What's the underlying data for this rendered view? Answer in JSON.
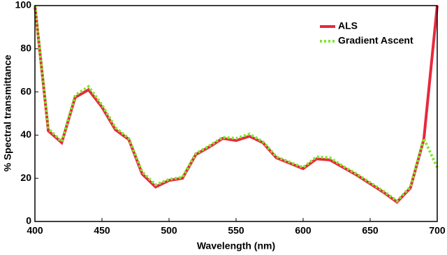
{
  "chart_data": {
    "type": "line",
    "xlabel": "Wavelength (nm)",
    "ylabel": "% Spectral transmittance",
    "x": [
      400,
      410,
      420,
      430,
      440,
      450,
      460,
      470,
      480,
      490,
      500,
      510,
      520,
      530,
      540,
      550,
      560,
      570,
      580,
      590,
      600,
      610,
      620,
      630,
      640,
      650,
      660,
      670,
      680,
      690,
      700
    ],
    "series": [
      {
        "name": "ALS",
        "color": "#e8283c",
        "style": "solid",
        "values": [
          100,
          42,
          36.5,
          57.5,
          61,
          53,
          42.5,
          38,
          22,
          16,
          19,
          20,
          31,
          34.5,
          38.5,
          37.5,
          39.5,
          36.5,
          29.5,
          27,
          24.5,
          29,
          28.5,
          25,
          21.5,
          17.5,
          13.5,
          9,
          15.5,
          38,
          100
        ]
      },
      {
        "name": "Gradient Ascent",
        "color": "#7ee830",
        "style": "dotted",
        "values": [
          100,
          43,
          37,
          58.5,
          62.5,
          54,
          43.5,
          38.5,
          23,
          17,
          19.5,
          20.5,
          31.5,
          35,
          39,
          38.5,
          40.5,
          37,
          30,
          27.5,
          25,
          30,
          29.5,
          25.5,
          22,
          18,
          14,
          9.5,
          16,
          38.5,
          25
        ]
      }
    ],
    "xlim": [
      400,
      700
    ],
    "ylim": [
      0,
      100
    ],
    "xticks": [
      400,
      450,
      500,
      550,
      600,
      650,
      700
    ],
    "yticks": [
      0,
      20,
      40,
      60,
      80,
      100
    ],
    "legend": "upper-right",
    "grid": false
  }
}
